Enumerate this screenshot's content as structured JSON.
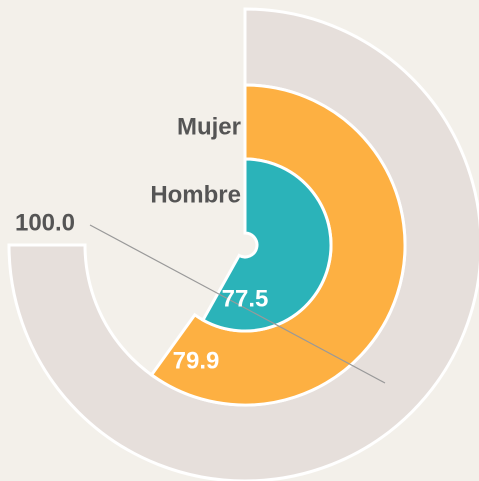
{
  "chart_data": {
    "type": "radial-bar",
    "categories": [
      null,
      "Mujer",
      "Hombre"
    ],
    "values": [
      100.0,
      79.9,
      77.5
    ],
    "value_labels": [
      "100.0",
      "79.9",
      "77.5"
    ],
    "colors": [
      "#e6dfdb",
      "#fdb042",
      "#2bb3b9"
    ],
    "vlim": [
      0,
      100
    ]
  }
}
